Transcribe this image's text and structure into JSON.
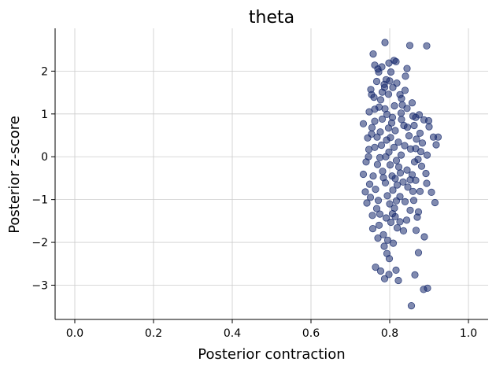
{
  "chart_data": {
    "type": "scatter",
    "title": "theta",
    "xlabel": "Posterior contraction",
    "ylabel": "Posterior z-score",
    "xlim": [
      -0.05,
      1.05
    ],
    "ylim": [
      -3.8,
      3.0
    ],
    "xticks": [
      0.0,
      0.2,
      0.4,
      0.6,
      0.8,
      1.0
    ],
    "xtick_labels": [
      "0.0",
      "0.2",
      "0.4",
      "0.6",
      "0.8",
      "1.0"
    ],
    "yticks": [
      -3,
      -2,
      -1,
      0,
      1,
      2
    ],
    "ytick_labels": [
      "−3",
      "−2",
      "−1",
      "0",
      "1",
      "2"
    ],
    "grid": true,
    "marker_color": "#172a6e",
    "marker_alpha": 0.55,
    "points": [
      [
        0.788,
        2.67
      ],
      [
        0.851,
        2.6
      ],
      [
        0.894,
        2.59
      ],
      [
        0.758,
        2.4
      ],
      [
        0.816,
        2.22
      ],
      [
        0.811,
        2.25
      ],
      [
        0.798,
        2.19
      ],
      [
        0.78,
        2.1
      ],
      [
        0.762,
        2.14
      ],
      [
        0.844,
        2.06
      ],
      [
        0.77,
        2.05
      ],
      [
        0.84,
        1.88
      ],
      [
        0.767,
        1.76
      ],
      [
        0.791,
        1.8
      ],
      [
        0.818,
        1.72
      ],
      [
        0.752,
        1.57
      ],
      [
        0.787,
        1.62
      ],
      [
        0.839,
        1.55
      ],
      [
        0.83,
        1.36
      ],
      [
        0.857,
        1.26
      ],
      [
        0.844,
        1.13
      ],
      [
        0.875,
        0.98
      ],
      [
        0.859,
        0.95
      ],
      [
        0.887,
        0.86
      ],
      [
        0.899,
        0.84
      ],
      [
        0.9,
        0.7
      ],
      [
        0.911,
        0.46
      ],
      [
        0.923,
        0.46
      ],
      [
        0.918,
        0.28
      ],
      [
        0.895,
        0.04
      ],
      [
        0.872,
        -0.06
      ],
      [
        0.892,
        -0.39
      ],
      [
        0.894,
        -0.62
      ],
      [
        0.906,
        -0.83
      ],
      [
        0.915,
        -1.07
      ],
      [
        0.873,
        -1.29
      ],
      [
        0.87,
        -1.41
      ],
      [
        0.867,
        -1.72
      ],
      [
        0.888,
        -1.87
      ],
      [
        0.819,
        -1.66
      ],
      [
        0.814,
        -1.4
      ],
      [
        0.835,
        -1.73
      ],
      [
        0.77,
        -1.9
      ],
      [
        0.786,
        -2.09
      ],
      [
        0.793,
        -2.26
      ],
      [
        0.809,
        -2.02
      ],
      [
        0.799,
        -2.38
      ],
      [
        0.764,
        -2.58
      ],
      [
        0.777,
        -2.67
      ],
      [
        0.816,
        -2.65
      ],
      [
        0.798,
        -2.75
      ],
      [
        0.787,
        -2.85
      ],
      [
        0.822,
        -2.89
      ],
      [
        0.864,
        -2.76
      ],
      [
        0.873,
        -2.24
      ],
      [
        0.896,
        -3.07
      ],
      [
        0.886,
        -3.1
      ],
      [
        0.855,
        -3.48
      ],
      [
        0.757,
        -1.68
      ],
      [
        0.756,
        -1.37
      ],
      [
        0.742,
        -1.08
      ],
      [
        0.738,
        -0.82
      ],
      [
        0.733,
        -0.41
      ],
      [
        0.74,
        -0.12
      ],
      [
        0.747,
        0.17
      ],
      [
        0.744,
        0.44
      ],
      [
        0.733,
        0.77
      ],
      [
        0.748,
        1.05
      ],
      [
        0.76,
        1.39
      ],
      [
        0.754,
        1.45
      ],
      [
        0.777,
        1.33
      ],
      [
        0.762,
        0.83
      ],
      [
        0.754,
        0.53
      ],
      [
        0.762,
        0.22
      ],
      [
        0.758,
        -0.45
      ],
      [
        0.764,
        -0.76
      ],
      [
        0.767,
        -1.21
      ],
      [
        0.773,
        -1.6
      ],
      [
        0.784,
        -1.82
      ],
      [
        0.803,
        -1.53
      ],
      [
        0.812,
        -1.2
      ],
      [
        0.826,
        -0.93
      ],
      [
        0.846,
        -0.71
      ],
      [
        0.857,
        -0.42
      ],
      [
        0.863,
        -0.12
      ],
      [
        0.853,
        0.18
      ],
      [
        0.849,
        0.49
      ],
      [
        0.836,
        0.73
      ],
      [
        0.829,
        1.02
      ],
      [
        0.812,
        1.19
      ],
      [
        0.797,
        1.46
      ],
      [
        0.788,
        1.12
      ],
      [
        0.781,
        0.88
      ],
      [
        0.776,
        0.58
      ],
      [
        0.779,
        0.27
      ],
      [
        0.775,
        -0.02
      ],
      [
        0.782,
        -0.34
      ],
      [
        0.789,
        -0.61
      ],
      [
        0.794,
        -0.91
      ],
      [
        0.8,
        -1.1
      ],
      [
        0.808,
        -0.78
      ],
      [
        0.814,
        -0.51
      ],
      [
        0.823,
        -0.24
      ],
      [
        0.829,
        0.04
      ],
      [
        0.822,
        0.34
      ],
      [
        0.814,
        0.61
      ],
      [
        0.807,
        0.92
      ],
      [
        0.797,
        0.67
      ],
      [
        0.792,
        0.39
      ],
      [
        0.798,
        0.11
      ],
      [
        0.801,
        -0.19
      ],
      [
        0.806,
        -0.45
      ],
      [
        0.817,
        -0.09
      ],
      [
        0.811,
        0.22
      ],
      [
        0.79,
        0.0
      ],
      [
        0.786,
        1.69
      ],
      [
        0.8,
        1.77
      ],
      [
        0.808,
        1.62
      ],
      [
        0.772,
        1.98
      ],
      [
        0.803,
        1.98
      ],
      [
        0.877,
        0.55
      ],
      [
        0.883,
        0.32
      ],
      [
        0.868,
        0.41
      ],
      [
        0.879,
        0.12
      ],
      [
        0.881,
        -0.22
      ],
      [
        0.866,
        -0.55
      ],
      [
        0.877,
        -0.81
      ],
      [
        0.861,
        -1.02
      ],
      [
        0.852,
        -1.25
      ],
      [
        0.843,
        -1.48
      ],
      [
        0.839,
        -1.05
      ],
      [
        0.834,
        -0.59
      ],
      [
        0.844,
        -0.31
      ],
      [
        0.838,
        0.26
      ],
      [
        0.845,
        0.69
      ],
      [
        0.862,
        0.73
      ],
      [
        0.866,
        0.19
      ],
      [
        0.859,
        -0.81
      ],
      [
        0.826,
        -1.52
      ],
      [
        0.795,
        -1.95
      ],
      [
        0.775,
        -1.34
      ],
      [
        0.771,
        -1.02
      ],
      [
        0.769,
        -0.18
      ],
      [
        0.768,
        0.46
      ],
      [
        0.773,
        1.16
      ],
      [
        0.781,
        1.51
      ],
      [
        0.826,
        1.45
      ],
      [
        0.832,
        1.21
      ],
      [
        0.805,
        0.79
      ],
      [
        0.784,
        -0.49
      ],
      [
        0.819,
        -0.66
      ],
      [
        0.827,
        -0.38
      ],
      [
        0.802,
        0.45
      ],
      [
        0.793,
        0.99
      ],
      [
        0.817,
        -1.03
      ],
      [
        0.807,
        -1.33
      ],
      [
        0.791,
        -1.43
      ],
      [
        0.762,
        1.11
      ],
      [
        0.755,
        0.68
      ],
      [
        0.749,
        -0.64
      ],
      [
        0.751,
        -0.95
      ],
      [
        0.746,
        0.0
      ],
      [
        0.83,
        0.87
      ],
      [
        0.852,
        -0.54
      ],
      [
        0.866,
        0.92
      ]
    ]
  }
}
